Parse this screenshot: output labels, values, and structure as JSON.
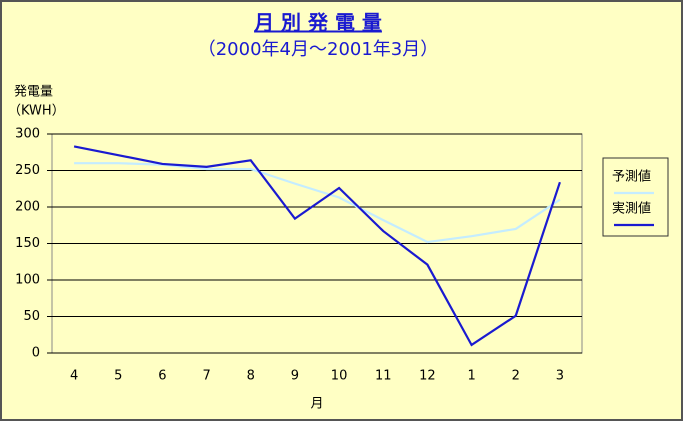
{
  "chart_data": {
    "type": "line",
    "title": "月 別 発 電 量",
    "subtitle": "（2000年4月～2001年3月）",
    "ylabel": "発電量",
    "yunit": "（KWH）",
    "xlabel": "月",
    "categories": [
      "4",
      "5",
      "6",
      "7",
      "8",
      "9",
      "10",
      "11",
      "12",
      "1",
      "2",
      "3"
    ],
    "series": [
      {
        "name": "予測値",
        "color": "#c4ecff",
        "values": [
          260,
          260,
          258,
          252,
          252,
          232,
          213,
          182,
          152,
          160,
          170,
          210
        ]
      },
      {
        "name": "実測値",
        "color": "#1a1ad0",
        "values": [
          283,
          271,
          259,
          255,
          264,
          184,
          226,
          167,
          121,
          11,
          51,
          234
        ]
      }
    ],
    "ylim": [
      0,
      300
    ],
    "yticks": [
      0,
      50,
      100,
      150,
      200,
      250,
      300
    ],
    "grid": true,
    "legend": "right"
  }
}
